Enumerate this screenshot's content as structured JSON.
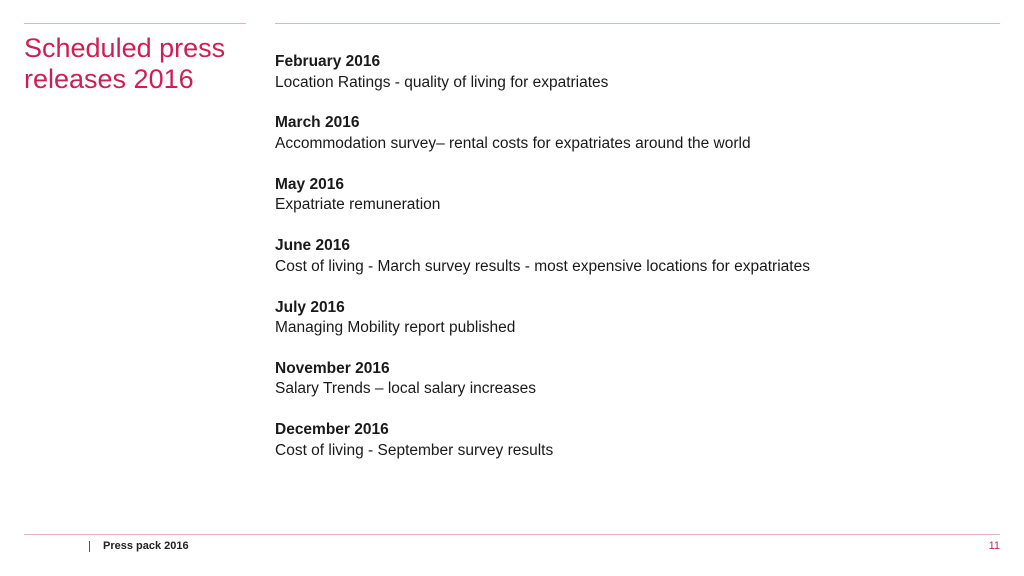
{
  "slide": {
    "title_line1": "Scheduled press",
    "title_line2": "releases 2016",
    "accent_color": "#cc1f55",
    "rule_color": "#e2b3c2"
  },
  "releases": [
    {
      "date": "February 2016",
      "description": "Location Ratings - quality of living for expatriates"
    },
    {
      "date": "March 2016",
      "description": "Accommodation survey– rental costs for expatriates around the world"
    },
    {
      "date": "May 2016",
      "description": "Expatriate remuneration"
    },
    {
      "date": "June 2016",
      "description": "Cost of living - March survey results - most expensive locations for expatriates"
    },
    {
      "date": "July 2016",
      "description": "Managing Mobility report published"
    },
    {
      "date": "November 2016",
      "description": "Salary Trends – local salary increases"
    },
    {
      "date": "December 2016",
      "description": "Cost of living - September survey results"
    }
  ],
  "footer": {
    "label": "Press pack 2016",
    "page_number": "11"
  }
}
